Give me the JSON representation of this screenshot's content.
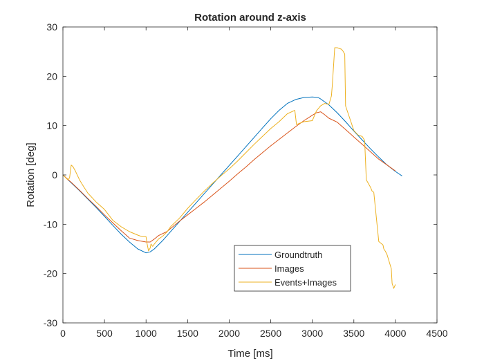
{
  "chart_data": {
    "type": "line",
    "title": "Rotation around z-axis",
    "xlabel": "Time [ms]",
    "ylabel": "Rotation [deg]",
    "xlim": [
      0,
      4500
    ],
    "ylim": [
      -30,
      30
    ],
    "xticks": [
      0,
      500,
      1000,
      1500,
      2000,
      2500,
      3000,
      3500,
      4000,
      4500
    ],
    "yticks": [
      -30,
      -20,
      -10,
      0,
      10,
      20,
      30
    ],
    "grid": false,
    "legend_position": "bottom-center",
    "series": [
      {
        "name": "Groundtruth",
        "color": "#0072BD",
        "x": [
          0,
          100,
          200,
          300,
          400,
          500,
          600,
          700,
          800,
          900,
          1000,
          1050,
          1100,
          1200,
          1300,
          1400,
          1500,
          1600,
          1700,
          1800,
          1900,
          2000,
          2100,
          2200,
          2300,
          2400,
          2500,
          2600,
          2700,
          2800,
          2900,
          3000,
          3070,
          3100,
          3200,
          3300,
          3400,
          3500,
          3600,
          3700,
          3800,
          3900,
          4000,
          4080
        ],
        "y": [
          0,
          -1.6,
          -3.2,
          -4.9,
          -6.6,
          -8.4,
          -10.2,
          -12.0,
          -13.6,
          -15.0,
          -15.8,
          -15.6,
          -15.0,
          -13.3,
          -11.4,
          -9.5,
          -7.6,
          -5.7,
          -3.8,
          -1.9,
          0,
          1.9,
          3.8,
          5.7,
          7.6,
          9.5,
          11.4,
          13.1,
          14.5,
          15.3,
          15.7,
          15.8,
          15.7,
          15.4,
          14.2,
          12.6,
          10.8,
          8.9,
          7.1,
          5.3,
          3.6,
          2.0,
          0.7,
          -0.2
        ]
      },
      {
        "name": "Images",
        "color": "#D95319",
        "x": [
          0,
          100,
          200,
          300,
          400,
          500,
          600,
          700,
          800,
          900,
          1000,
          1050,
          1100,
          1150,
          1250,
          1300,
          1400,
          1500,
          1600,
          1700,
          1800,
          1900,
          2000,
          2100,
          2200,
          2300,
          2400,
          2500,
          2600,
          2700,
          2800,
          2900,
          3000,
          3050,
          3100,
          3150,
          3200,
          3300,
          3400,
          3500,
          3600,
          3700,
          3800,
          3900,
          4000
        ],
        "y": [
          0,
          -1.5,
          -3.1,
          -4.8,
          -6.4,
          -8.1,
          -9.7,
          -11.3,
          -12.8,
          -13.3,
          -13.6,
          -13.6,
          -13.0,
          -12.3,
          -11.5,
          -10.8,
          -9.4,
          -8.1,
          -6.8,
          -5.5,
          -4.1,
          -2.7,
          -1.3,
          0.2,
          1.6,
          3.1,
          4.5,
          5.9,
          7.2,
          8.5,
          9.8,
          11.0,
          12.1,
          12.6,
          12.8,
          12.2,
          11.5,
          10.7,
          9.2,
          7.7,
          6.2,
          4.7,
          3.2,
          2.0,
          0.8
        ]
      },
      {
        "name": "Events+Images",
        "color": "#EDB120",
        "x": [
          0,
          60,
          80,
          100,
          120,
          150,
          200,
          250,
          300,
          400,
          500,
          600,
          700,
          800,
          900,
          950,
          1000,
          1010,
          1030,
          1050,
          1060,
          1080,
          1100,
          1150,
          1200,
          1250,
          1300,
          1400,
          1500,
          1600,
          1700,
          1800,
          1900,
          2000,
          2100,
          2200,
          2300,
          2400,
          2500,
          2600,
          2700,
          2790,
          2810,
          2850,
          2900,
          2950,
          3000,
          3050,
          3100,
          3150,
          3200,
          3230,
          3240,
          3270,
          3300,
          3350,
          3370,
          3390,
          3400,
          3450,
          3500,
          3550,
          3600,
          3630,
          3650,
          3700,
          3720,
          3740,
          3800,
          3850,
          3860,
          3880,
          3900,
          3950,
          3960,
          3980,
          4000
        ],
        "y": [
          0,
          -1.0,
          -0.6,
          2.0,
          1.7,
          0.8,
          -1.0,
          -2.4,
          -3.7,
          -5.5,
          -7.0,
          -9.2,
          -10.5,
          -11.5,
          -12.2,
          -12.5,
          -12.5,
          -13.7,
          -15.4,
          -14.8,
          -14.0,
          -14.5,
          -14.0,
          -13.0,
          -12.4,
          -11.6,
          -10.4,
          -8.8,
          -6.8,
          -5.0,
          -3.3,
          -1.7,
          -0.2,
          1.2,
          2.8,
          4.5,
          6.2,
          7.8,
          9.4,
          10.8,
          12.4,
          13.1,
          10.2,
          10.5,
          10.8,
          10.9,
          11.0,
          13.0,
          14.0,
          14.5,
          14.3,
          16.0,
          18.0,
          25.8,
          25.8,
          25.5,
          25.1,
          24.5,
          14.0,
          11.5,
          9.0,
          8.1,
          7.8,
          7.0,
          -1.0,
          -2.5,
          -3.3,
          -3.5,
          -13.5,
          -14.2,
          -15.0,
          -15.5,
          -16.2,
          -19.0,
          -22.0,
          -23.0,
          -22.2
        ]
      }
    ]
  }
}
